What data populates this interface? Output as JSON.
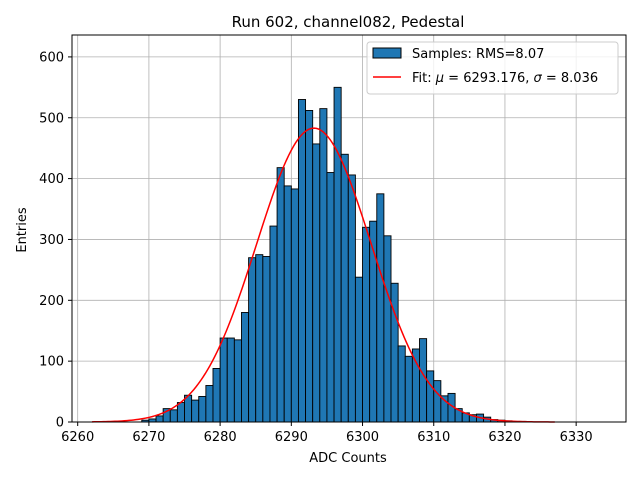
{
  "chart_data": {
    "type": "bar",
    "title": "Run 602, channel082, Pedestal",
    "xlabel": "ADC Counts",
    "ylabel": "Entries",
    "xlim": [
      6259.2,
      6337.0
    ],
    "ylim": [
      0,
      636
    ],
    "xticks": [
      6260,
      6270,
      6280,
      6290,
      6300,
      6310,
      6320,
      6330
    ],
    "yticks": [
      0,
      100,
      200,
      300,
      400,
      500,
      600
    ],
    "grid": true,
    "legend_position": "top-right",
    "colors": {
      "bar_fill": "#1f77b4",
      "bar_edge": "#000000",
      "fit_line": "#ff0000",
      "grid": "#b0b0b0"
    },
    "bin_width": 1,
    "series": [
      {
        "name": "Samples: RMS=8.07",
        "kind": "histogram",
        "bin_starts": [
          6269,
          6270,
          6271,
          6272,
          6273,
          6274,
          6275,
          6276,
          6277,
          6278,
          6279,
          6280,
          6281,
          6282,
          6283,
          6284,
          6285,
          6286,
          6287,
          6288,
          6289,
          6290,
          6291,
          6292,
          6293,
          6294,
          6295,
          6296,
          6297,
          6298,
          6299,
          6300,
          6301,
          6302,
          6303,
          6304,
          6305,
          6306,
          6307,
          6308,
          6309,
          6310,
          6311,
          6312,
          6313,
          6314,
          6315,
          6316,
          6317,
          6318,
          6319,
          6320,
          6321,
          6322
        ],
        "values": [
          3,
          5,
          10,
          22,
          20,
          32,
          44,
          36,
          42,
          60,
          88,
          138,
          138,
          135,
          180,
          270,
          275,
          272,
          322,
          418,
          388,
          383,
          530,
          512,
          457,
          515,
          410,
          550,
          440,
          406,
          238,
          320,
          330,
          375,
          306,
          228,
          125,
          108,
          120,
          137,
          84,
          68,
          43,
          47,
          22,
          15,
          12,
          13,
          8,
          4,
          3,
          2,
          1,
          1
        ]
      },
      {
        "name": "Fit: μ = 6293.176, σ = 8.036",
        "kind": "gaussian-line",
        "mu": 6293.176,
        "sigma": 8.036,
        "amplitude": 483,
        "x_range": [
          6262,
          6327
        ]
      }
    ],
    "legend_entries": [
      {
        "prefix": "Samples: RMS=8.07",
        "mu_symbol": "",
        "mu_value": "",
        "sigma_symbol": "",
        "sigma_value": ""
      },
      {
        "prefix": "Fit: ",
        "mu_symbol": "μ",
        "mu_value": " = 6293.176, ",
        "sigma_symbol": "σ",
        "sigma_value": " = 8.036"
      }
    ]
  }
}
